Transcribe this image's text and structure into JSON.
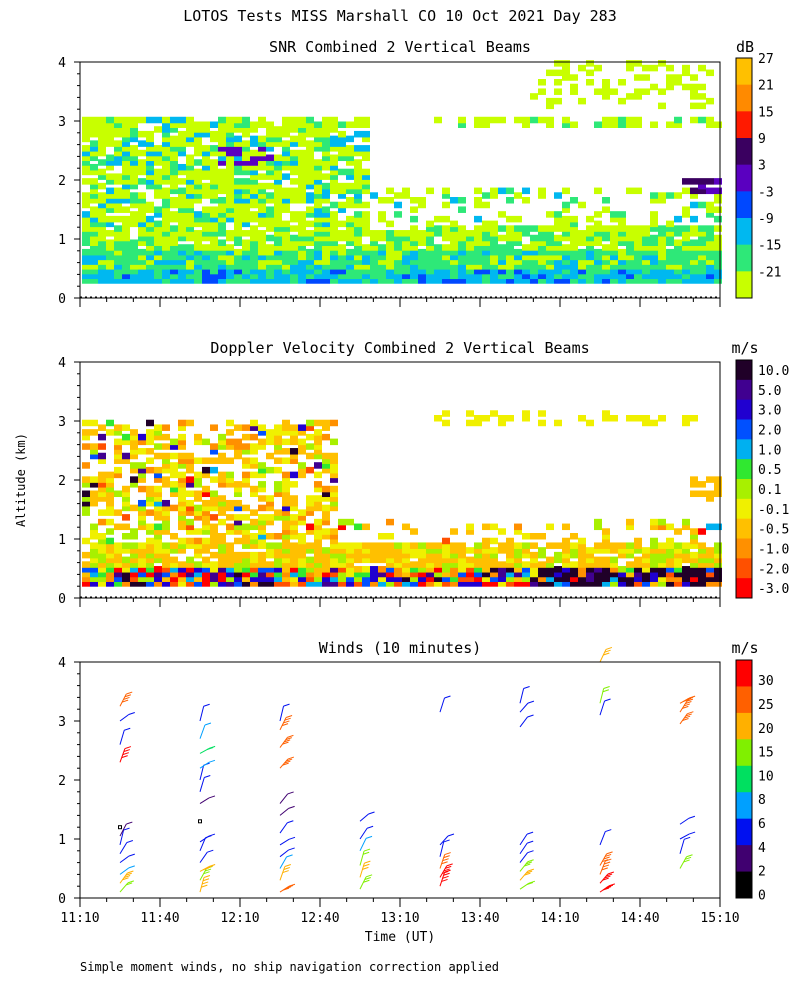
{
  "figure": {
    "title": "LOTOS Tests MISS Marshall CO  10 Oct 2021 Day 283",
    "ylabel": "Altitude (km)",
    "xlabel": "Time (UT)",
    "footnote": "Simple moment winds, no ship navigation correction applied"
  },
  "chart_data": [
    {
      "type": "heatmap",
      "title": "SNR Combined 2 Vertical Beams",
      "units": "dB",
      "xlim": [
        "11:10",
        "15:10"
      ],
      "xticks": [
        "11:10",
        "11:40",
        "12:10",
        "12:40",
        "13:10",
        "13:40",
        "14:10",
        "14:40",
        "15:10"
      ],
      "ylim": [
        0,
        4
      ],
      "yticks": [
        0,
        1,
        2,
        3,
        4
      ],
      "colorbar_labels": [
        "-21",
        "-15",
        "-9",
        "-3",
        "3",
        "9",
        "15",
        "21",
        "27"
      ],
      "colorbar_colors": [
        "#c8ff00",
        "#2ee878",
        "#00b8f0",
        "#0048ff",
        "#5a00c0",
        "#3a0060",
        "#ff1a00",
        "#ff8a00",
        "#ffc000"
      ],
      "note": "SNR strongest (blue) below 0.5 km, decreasing upward to ~-21 dB up to ~3 km; layer near 3 km after 13:30"
    },
    {
      "type": "heatmap",
      "title": "Doppler Velocity Combined 2 Vertical Beams",
      "units": "m/s",
      "xlim": [
        "11:10",
        "15:10"
      ],
      "ylim": [
        0,
        4
      ],
      "yticks": [
        0,
        1,
        2,
        3,
        4
      ],
      "colorbar_labels": [
        "10.0",
        "5.0",
        "3.0",
        "2.0",
        "1.0",
        "0.5",
        "0.1",
        "-0.1",
        "-0.5",
        "-1.0",
        "-2.0",
        "-3.0"
      ],
      "colorbar_colors": [
        "#200028",
        "#400090",
        "#2000d0",
        "#0050ff",
        "#00b0f0",
        "#30e830",
        "#a8f000",
        "#f0f000",
        "#ffc000",
        "#ff9000",
        "#ff5000",
        "#ff0000"
      ],
      "note": "Mostly weak negative velocities (yellow/orange) below 3 km, mixed signs below 0.5 km"
    },
    {
      "type": "scatter",
      "title": "Winds (10 minutes)",
      "units": "m/s",
      "xlim": [
        "11:10",
        "15:10"
      ],
      "ylim": [
        0,
        4
      ],
      "yticks": [
        0,
        1,
        2,
        3,
        4
      ],
      "colorbar_labels": [
        "0",
        "2",
        "4",
        "6",
        "8",
        "10",
        "15",
        "20",
        "25",
        "30"
      ],
      "colorbar_colors": [
        "#000000",
        "#400070",
        "#0010f0",
        "#00a0ff",
        "#00e060",
        "#80f000",
        "#ffb000",
        "#ff6000",
        "#ff0000"
      ],
      "profile_times": [
        "11:25",
        "11:55",
        "12:25",
        "12:55",
        "13:25",
        "13:55",
        "14:25",
        "14:55"
      ],
      "profiles": [
        {
          "time": "11:25",
          "altitudes_km": [
            0.1,
            0.25,
            0.4,
            0.6,
            0.75,
            0.9,
            1.05,
            1.2,
            2.3,
            2.6,
            3.0,
            3.25
          ],
          "speeds": [
            12,
            18,
            6,
            5,
            4,
            4,
            3,
            0,
            25,
            4,
            5,
            22
          ]
        },
        {
          "time": "11:55",
          "altitudes_km": [
            0.1,
            0.3,
            0.45,
            0.6,
            0.8,
            0.95,
            1.3,
            1.6,
            1.8,
            2.0,
            2.2,
            2.45,
            2.7,
            3.0
          ],
          "speeds": [
            18,
            14,
            18,
            5,
            4,
            4,
            0,
            3,
            4,
            5,
            7,
            8,
            6,
            4
          ]
        },
        {
          "time": "12:25",
          "altitudes_km": [
            0.1,
            0.3,
            0.5,
            0.7,
            0.9,
            1.1,
            1.4,
            1.6,
            2.2,
            2.55,
            2.85,
            3.0
          ],
          "speeds": [
            22,
            15,
            6,
            5,
            5,
            4,
            3,
            3,
            22,
            22,
            22,
            4
          ]
        },
        {
          "time": "12:55",
          "altitudes_km": [
            0.15,
            0.35,
            0.55,
            0.8,
            1.0,
            1.3
          ],
          "speeds": [
            14,
            16,
            12,
            6,
            5,
            4
          ]
        },
        {
          "time": "13:25",
          "altitudes_km": [
            0.2,
            0.35,
            0.5,
            0.7,
            0.9,
            3.15
          ],
          "speeds": [
            25,
            25,
            20,
            5,
            4,
            4
          ]
        },
        {
          "time": "13:55",
          "altitudes_km": [
            0.15,
            0.3,
            0.45,
            0.6,
            0.75,
            0.9,
            2.9,
            3.15,
            3.3
          ],
          "speeds": [
            12,
            16,
            14,
            4,
            4,
            4,
            4,
            4,
            4
          ]
        },
        {
          "time": "14:25",
          "altitudes_km": [
            0.1,
            0.25,
            0.4,
            0.55,
            0.9,
            3.1,
            3.3,
            4.0
          ],
          "speeds": [
            25,
            25,
            24,
            22,
            4,
            4,
            12,
            15
          ]
        },
        {
          "time": "14:55",
          "altitudes_km": [
            0.5,
            0.75,
            1.0,
            1.25,
            2.95,
            3.15,
            3.3
          ],
          "speeds": [
            14,
            4,
            4,
            4,
            20,
            20,
            20
          ]
        }
      ]
    }
  ]
}
